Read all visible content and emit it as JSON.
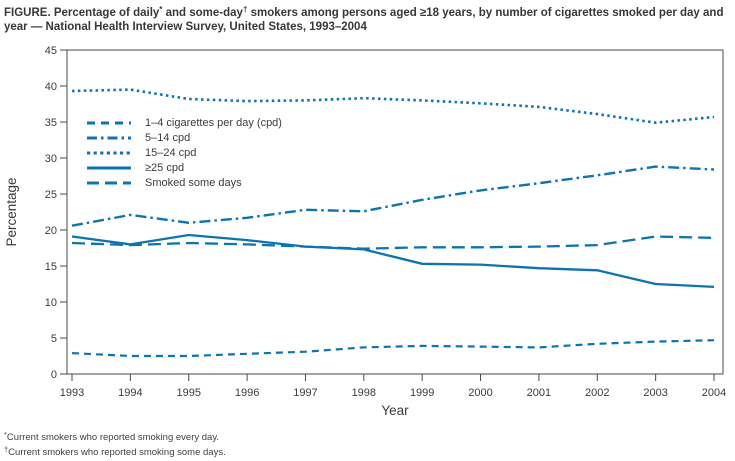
{
  "title": {
    "part1": "FIGURE. Percentage of daily",
    "sup1": "*",
    "part2": " and some-day",
    "sup2": "†",
    "part3": " smokers among persons aged ≥18 years, by number of cigarettes smoked per day and year — National Health Interview Survey, United States, 1993–2004"
  },
  "footnotes": [
    {
      "marker": "*",
      "text": "Current smokers who reported smoking every day."
    },
    {
      "marker": "†",
      "text": "Current smokers who reported smoking some days."
    }
  ],
  "chart_data": {
    "type": "line",
    "title": "FIGURE. Percentage of daily and some-day smokers among persons aged ≥18 years, by number of cigarettes smoked per day and year — National Health Interview Survey, United States, 1993–2004",
    "x": [
      1993,
      1994,
      1995,
      1996,
      1997,
      1998,
      1999,
      2000,
      2001,
      2002,
      2003,
      2004
    ],
    "xlabel": "Year",
    "ylabel": "Percentage",
    "ylim": [
      0,
      45
    ],
    "ytick_step": 5,
    "grid": false,
    "legend_position": "inside-top-left",
    "line_color": "#0d74ae",
    "series": [
      {
        "name": "1–4 cigarettes per day (cpd)",
        "style": "dash",
        "values": [
          2.9,
          2.5,
          2.5,
          2.8,
          3.1,
          3.7,
          3.9,
          3.8,
          3.7,
          4.2,
          4.5,
          4.7
        ]
      },
      {
        "name": "5–14 cpd",
        "style": "dashdot",
        "values": [
          20.6,
          22.1,
          21.0,
          21.7,
          22.8,
          22.6,
          24.2,
          25.5,
          26.5,
          27.6,
          28.8,
          28.4
        ]
      },
      {
        "name": "15–24 cpd",
        "style": "dotted",
        "values": [
          39.3,
          39.5,
          38.2,
          37.9,
          38.0,
          38.3,
          38.0,
          37.6,
          37.1,
          36.1,
          34.9,
          35.7
        ]
      },
      {
        "name": "≥25 cpd",
        "style": "solid",
        "values": [
          19.1,
          18.0,
          19.3,
          18.6,
          17.7,
          17.3,
          15.3,
          15.2,
          14.7,
          14.4,
          12.5,
          12.1
        ]
      },
      {
        "name": "Smoked some days",
        "style": "longdash",
        "values": [
          18.2,
          17.9,
          18.2,
          18.0,
          17.7,
          17.4,
          17.6,
          17.6,
          17.7,
          17.9,
          19.1,
          18.9
        ]
      }
    ]
  },
  "colors": {
    "series_blue": "#0d74ae",
    "axis": "#4a4a4a",
    "text": "#3c3c3c"
  }
}
